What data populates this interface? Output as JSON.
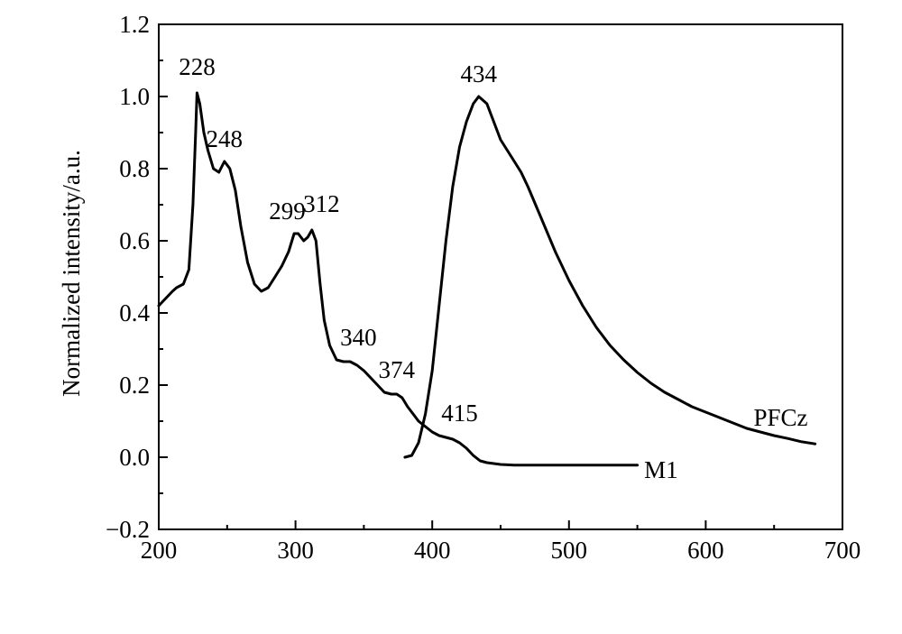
{
  "chart_data": {
    "type": "line",
    "title": "",
    "xlabel": "",
    "ylabel": "Normalized intensity/a.u.",
    "xlim": [
      200,
      700
    ],
    "ylim": [
      -0.2,
      1.2
    ],
    "x_ticks": [
      "200",
      "300",
      "400",
      "500",
      "600",
      "700"
    ],
    "y_ticks": [
      "−0.2",
      "0.0",
      "0.2",
      "0.4",
      "0.6",
      "0.8",
      "1.0",
      "1.2"
    ],
    "grid": false,
    "series": [
      {
        "name": "M1",
        "points": [
          [
            200,
            0.42
          ],
          [
            205,
            0.44
          ],
          [
            210,
            0.46
          ],
          [
            213,
            0.47
          ],
          [
            218,
            0.48
          ],
          [
            222,
            0.52
          ],
          [
            225,
            0.7
          ],
          [
            227,
            0.9
          ],
          [
            228,
            1.01
          ],
          [
            230,
            0.98
          ],
          [
            233,
            0.9
          ],
          [
            236,
            0.85
          ],
          [
            240,
            0.8
          ],
          [
            244,
            0.79
          ],
          [
            248,
            0.82
          ],
          [
            252,
            0.8
          ],
          [
            256,
            0.74
          ],
          [
            260,
            0.64
          ],
          [
            265,
            0.54
          ],
          [
            270,
            0.48
          ],
          [
            275,
            0.46
          ],
          [
            280,
            0.47
          ],
          [
            285,
            0.5
          ],
          [
            290,
            0.53
          ],
          [
            295,
            0.57
          ],
          [
            299,
            0.62
          ],
          [
            302,
            0.62
          ],
          [
            306,
            0.6
          ],
          [
            309,
            0.61
          ],
          [
            312,
            0.63
          ],
          [
            315,
            0.6
          ],
          [
            318,
            0.48
          ],
          [
            321,
            0.38
          ],
          [
            325,
            0.31
          ],
          [
            330,
            0.27
          ],
          [
            335,
            0.265
          ],
          [
            340,
            0.265
          ],
          [
            345,
            0.255
          ],
          [
            350,
            0.24
          ],
          [
            355,
            0.22
          ],
          [
            360,
            0.2
          ],
          [
            365,
            0.18
          ],
          [
            370,
            0.175
          ],
          [
            374,
            0.175
          ],
          [
            378,
            0.165
          ],
          [
            382,
            0.14
          ],
          [
            386,
            0.12
          ],
          [
            390,
            0.1
          ],
          [
            395,
            0.085
          ],
          [
            400,
            0.07
          ],
          [
            405,
            0.06
          ],
          [
            410,
            0.055
          ],
          [
            415,
            0.05
          ],
          [
            420,
            0.04
          ],
          [
            425,
            0.025
          ],
          [
            430,
            0.005
          ],
          [
            435,
            -0.01
          ],
          [
            440,
            -0.015
          ],
          [
            450,
            -0.02
          ],
          [
            460,
            -0.022
          ],
          [
            480,
            -0.022
          ],
          [
            500,
            -0.022
          ],
          [
            520,
            -0.022
          ],
          [
            550,
            -0.022
          ]
        ]
      },
      {
        "name": "PFCz",
        "points": [
          [
            380,
            0.0
          ],
          [
            385,
            0.005
          ],
          [
            390,
            0.04
          ],
          [
            395,
            0.12
          ],
          [
            400,
            0.24
          ],
          [
            405,
            0.42
          ],
          [
            410,
            0.6
          ],
          [
            415,
            0.75
          ],
          [
            420,
            0.86
          ],
          [
            425,
            0.93
          ],
          [
            430,
            0.98
          ],
          [
            434,
            1.0
          ],
          [
            440,
            0.98
          ],
          [
            445,
            0.93
          ],
          [
            450,
            0.88
          ],
          [
            455,
            0.85
          ],
          [
            460,
            0.82
          ],
          [
            465,
            0.79
          ],
          [
            470,
            0.75
          ],
          [
            480,
            0.66
          ],
          [
            490,
            0.57
          ],
          [
            500,
            0.49
          ],
          [
            510,
            0.42
          ],
          [
            520,
            0.36
          ],
          [
            530,
            0.31
          ],
          [
            540,
            0.27
          ],
          [
            550,
            0.235
          ],
          [
            560,
            0.205
          ],
          [
            570,
            0.18
          ],
          [
            580,
            0.16
          ],
          [
            590,
            0.14
          ],
          [
            600,
            0.125
          ],
          [
            610,
            0.11
          ],
          [
            620,
            0.095
          ],
          [
            630,
            0.08
          ],
          [
            640,
            0.07
          ],
          [
            650,
            0.06
          ],
          [
            660,
            0.052
          ],
          [
            670,
            0.043
          ],
          [
            680,
            0.037
          ]
        ]
      }
    ],
    "series_labels": [
      {
        "text": "M1",
        "x": 555,
        "y": -0.035
      },
      {
        "text": "PFCz",
        "x": 635,
        "y": 0.11
      }
    ],
    "annotations": [
      {
        "text": "228",
        "x": 228,
        "y": 1.06
      },
      {
        "text": "248",
        "x": 248,
        "y": 0.86
      },
      {
        "text": "299",
        "x": 294,
        "y": 0.66
      },
      {
        "text": "312",
        "x": 319,
        "y": 0.68
      },
      {
        "text": "340",
        "x": 346,
        "y": 0.31
      },
      {
        "text": "374",
        "x": 374,
        "y": 0.22
      },
      {
        "text": "415",
        "x": 420,
        "y": 0.1
      },
      {
        "text": "434",
        "x": 434,
        "y": 1.04
      }
    ]
  }
}
